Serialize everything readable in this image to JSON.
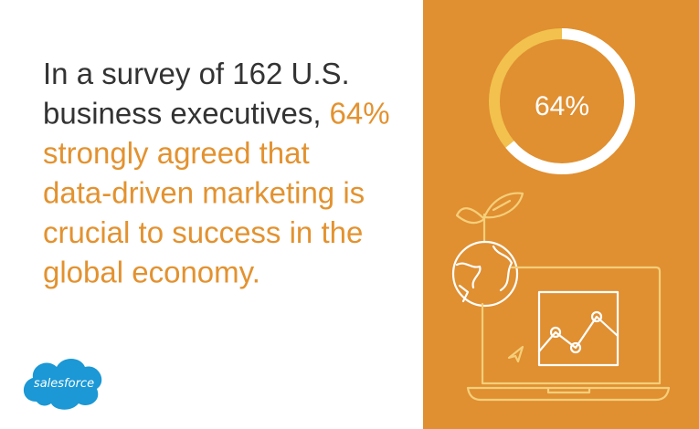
{
  "headline": {
    "intro": [
      "In a survey of 162 U.S.",
      "business executives,"
    ],
    "highlight": [
      "64%",
      "strongly agreed that",
      "data-driven marketing is",
      "crucial to success in the",
      "global economy."
    ]
  },
  "donut": {
    "value": 64,
    "label": "64%",
    "color": "#ffffff",
    "rest_color": "#f2c14e"
  },
  "logo": "salesforce"
}
